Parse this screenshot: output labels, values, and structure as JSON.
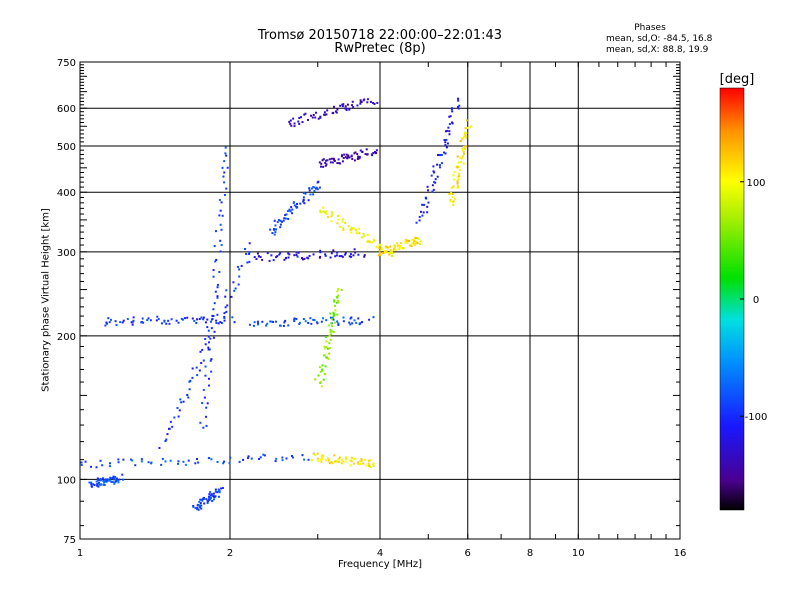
{
  "chart_data": {
    "type": "scatter",
    "title": "Tromsø 20150718 22:00:00–22:01:43",
    "subtitle": "RwPretec (8p)",
    "xlabel": "Frequency [MHz]",
    "ylabel": "Stationary phase Virtual Height [km]",
    "x_scale": "log",
    "y_scale": "log",
    "xlim": [
      1,
      16
    ],
    "ylim": [
      75,
      750
    ],
    "x_ticks": [
      "1",
      "2",
      "4",
      "6",
      "8",
      "10",
      "16"
    ],
    "y_ticks": [
      "75",
      "100",
      "200",
      "300",
      "400",
      "500",
      "600",
      "750"
    ],
    "grid": true,
    "legend": {
      "title": "Phases",
      "line1": "mean, sd,O: -84.5, 16.8",
      "line2": "mean, sd,X:  88.8, 19.9"
    },
    "colorbar": {
      "label": "[deg]",
      "ticks": [
        "100",
        "0",
        "-100"
      ],
      "range": [
        -180,
        180
      ]
    },
    "traces": [
      {
        "x": [
          1.75,
          1.97
        ],
        "y": [
          128,
          500
        ],
        "phase": -95
      },
      {
        "x": [
          1.45,
          2.2
        ],
        "y": [
          118,
          310
        ],
        "phase": -100
      },
      {
        "x": [
          1.0,
          2.9
        ],
        "y": [
          108,
          112
        ],
        "phase": -85
      },
      {
        "x": [
          2.9,
          3.9
        ],
        "y": [
          112,
          108
        ],
        "phase": 105
      },
      {
        "x": [
          1.05,
          1.2
        ],
        "y": [
          98,
          101
        ],
        "phase": -80
      },
      {
        "x": [
          1.1,
          2.0
        ],
        "y": [
          215,
          218
        ],
        "phase": -95
      },
      {
        "x": [
          2.2,
          3.8
        ],
        "y": [
          214,
          216
        ],
        "phase": -85
      },
      {
        "x": [
          2.2,
          3.7
        ],
        "y": [
          293,
          300
        ],
        "phase": -120
      },
      {
        "x": [
          2.4,
          3.0
        ],
        "y": [
          330,
          420
        ],
        "phase": -90
      },
      {
        "x": [
          2.6,
          3.9
        ],
        "y": [
          560,
          630
        ],
        "phase": -130
      },
      {
        "x": [
          3.0,
          3.9
        ],
        "y": [
          460,
          490
        ],
        "phase": -140
      },
      {
        "x": [
          3.0,
          4.2
        ],
        "y": [
          370,
          300
        ],
        "phase": 100
      },
      {
        "x": [
          4.0,
          4.8
        ],
        "y": [
          300,
          320
        ],
        "phase": 110
      },
      {
        "x": [
          4.8,
          5.7
        ],
        "y": [
          350,
          630
        ],
        "phase": -110
      },
      {
        "x": [
          5.5,
          6.0
        ],
        "y": [
          380,
          560
        ],
        "phase": 110
      },
      {
        "x": [
          3.0,
          3.3
        ],
        "y": [
          160,
          250
        ],
        "phase": 60
      },
      {
        "x": [
          1.7,
          1.9
        ],
        "y": [
          88,
          95
        ],
        "phase": -90
      }
    ]
  }
}
